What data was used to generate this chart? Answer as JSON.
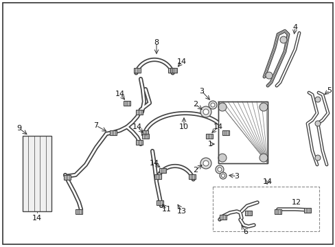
{
  "bg_color": "#ffffff",
  "lc": "#444444",
  "fig_width": 4.89,
  "fig_height": 3.6,
  "dpi": 100,
  "border_color": "#333333",
  "label_fs": 8,
  "gray1": "#cccccc",
  "gray2": "#888888",
  "gray3": "#555555"
}
